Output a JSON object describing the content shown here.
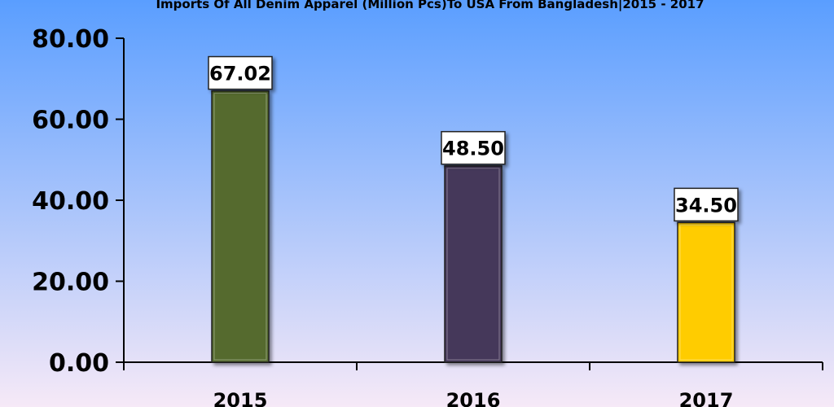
{
  "chart_data": {
    "type": "bar",
    "title": "Imports Of All Denim Apparel (Million Pcs)To USA From Bangladesh|2015 - 2017",
    "categories": [
      "2015",
      "2016",
      "2017"
    ],
    "values": [
      67.02,
      48.5,
      34.5
    ],
    "value_labels": [
      "67.02",
      "48.50",
      "34.50"
    ],
    "bar_colors": [
      "#556b2f",
      "#45375a",
      "#ffcc00"
    ],
    "ylim": [
      0,
      80
    ],
    "yticks": [
      0,
      20,
      40,
      60,
      80
    ],
    "ytick_labels": [
      "0.00",
      "20.00",
      "40.00",
      "60.00",
      "80.00"
    ],
    "xlabel": "",
    "ylabel": "",
    "grid": false,
    "legend": "none",
    "background_gradient": [
      "#5a9eff",
      "#f6e9f7"
    ]
  }
}
